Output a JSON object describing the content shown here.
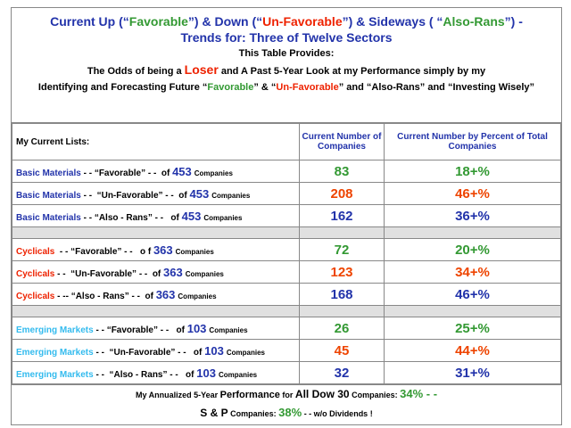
{
  "header": {
    "line1": [
      "Current Up (“",
      "Favorable",
      "”)  &  Down (“",
      "Un-Favorable",
      "”)  &  Sideways ( “",
      "Also-Rans",
      "”) -"
    ],
    "line2": "Trends for:  Three  of  Twelve Sectors",
    "line3": "This Table Provides:",
    "line4": [
      "The Odds of being a ",
      "Loser",
      " and A Past 5-Year Look at my Performance simply by my"
    ],
    "line5": [
      "Identifying and Forecasting Future “",
      "Favorable",
      "” & “",
      "Un-Favorable",
      "” and “Also-Rans” and “Investing Wisely”"
    ]
  },
  "table": {
    "columns": [
      "My Current Lists:",
      "Current Number of Companies",
      "Current Number  by Percent of Total Companies"
    ],
    "groups": [
      {
        "sector": "Basic Materials",
        "total": 453,
        "rows": [
          {
            "middle": " - - “Favorable” - -  of ",
            "count": 83,
            "percent": "18+%"
          },
          {
            "middle": " - -  “Un-Favorable” - -  of ",
            "count": 208,
            "percent": "46+%"
          },
          {
            "middle": " - - “Also - Rans” - -   of ",
            "count": 162,
            "percent": "36+%"
          }
        ]
      },
      {
        "sector": "Cyclicals",
        "total": 363,
        "rows": [
          {
            "middle": "  - - “Favorable” - -   o f ",
            "count": 72,
            "percent": "20+%"
          },
          {
            "middle": " - -  “Un-Favorable” - -  of ",
            "count": 123,
            "percent": "34+%"
          },
          {
            "middle": " - -- “Also - Rans” - -  of ",
            "count": 168,
            "percent": "46+%"
          }
        ]
      },
      {
        "sector": "Emerging Markets",
        "total": 103,
        "rows": [
          {
            "middle": " - - “Favorable” - -   of ",
            "count": 26,
            "percent": "25+%"
          },
          {
            "middle": " - -  “Un-Favorable” - -   of ",
            "count": 45,
            "percent": "44+%"
          },
          {
            "middle": " - -  “Also - Rans” - -   of ",
            "count": 32,
            "percent": "31+%"
          }
        ]
      }
    ],
    "unit": "Companies"
  },
  "footer": {
    "line1": [
      "My Annualized 5-Year ",
      "Performance",
      " for ",
      "All Dow 30",
      " Companies: ",
      "34%  - -"
    ],
    "line2": [
      "S & P",
      " Companies: ",
      "38%",
      " - - w/o Dividends !"
    ]
  }
}
